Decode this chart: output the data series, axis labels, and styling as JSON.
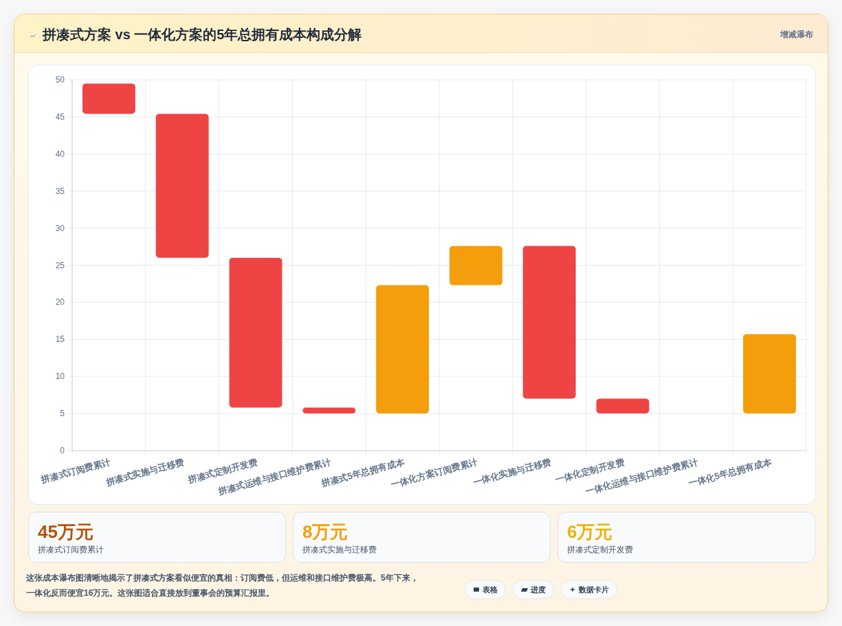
{
  "chart_data": [
    {
      "type": "bar",
      "title": "拼凑式方案 vs 一体化方案的5年总拥有成本构成分解",
      "categories": [
        "拼凑式订阅费累计",
        "拼凑式实施与迁移费",
        "拼凑式定制开发费",
        "拼凑式运维与接口维护费累计",
        "拼凑式5年总拥有成本",
        "一体化方案订阅费累计",
        "一体化实施与迁移费",
        "一体化定制开发费",
        "一体化运维与接口维护费累计",
        "一体化5年总拥有成本"
      ],
      "base": [
        45.4,
        26.0,
        5.8,
        5.0,
        5.0,
        22.3,
        7.0,
        5.0,
        null,
        5.0
      ],
      "values": [
        4.1,
        19.4,
        20.2,
        0.8,
        17.3,
        5.3,
        20.6,
        2.0,
        null,
        10.7
      ],
      "colors": [
        "#ef4444",
        "#ef4444",
        "#ef4444",
        "#ef4444",
        "#f59e0b",
        "#f59e0b",
        "#ef4444",
        "#ef4444",
        null,
        "#f59e0b"
      ],
      "ylim": [
        0,
        50
      ],
      "yticks": [
        0,
        5,
        10,
        15,
        20,
        25,
        30,
        35,
        40,
        45,
        50
      ],
      "grid": true,
      "annotations": [
        "增减瀑布",
        "这张成本瀑布图清晰地揭示了拼凑式方案看似便宜的真相：订阅费低，但运维和接口维护费极高。5年下来，一体化反而便宜16万元。这张图适合直接放到董事会的预算汇报里。",
        "表格",
        "进度",
        "数据卡片"
      ]
    },
    {
      "type": "other",
      "title": "45万元",
      "subtitle": "拼凑式订阅费累计",
      "color": "#b45309"
    },
    {
      "type": "other",
      "title": "8万元",
      "subtitle": "拼凑式实施与迁移费",
      "color": "#f59e0b"
    },
    {
      "type": "other",
      "title": "6万元",
      "subtitle": "拼凑式定制开发费",
      "color": "#eab308"
    }
  ]
}
